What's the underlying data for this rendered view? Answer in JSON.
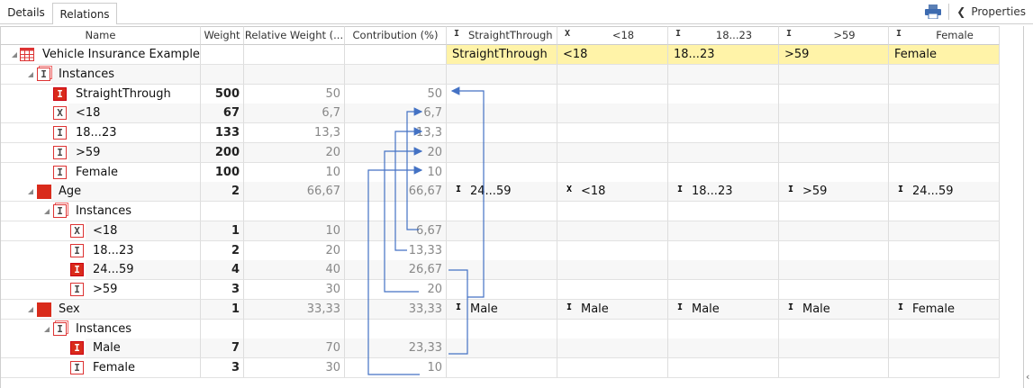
{
  "tabs": [
    {
      "label": "Details",
      "active": true
    },
    {
      "label": "Relations",
      "active": false
    }
  ],
  "toolbar": {
    "print_icon": "printer-icon",
    "properties_label": "Properties",
    "chevron_icon": "chevron-left-icon"
  },
  "columns": {
    "name": "Name",
    "weight": "Weight",
    "relative_weight": "Relative Weight (...",
    "contribution": "Contribution (%)",
    "instances": [
      {
        "icon": "instance-selected",
        "label": "StraightThrough"
      },
      {
        "icon": "instance-excluded",
        "label": "<18"
      },
      {
        "icon": "instance",
        "label": "18...23"
      },
      {
        "icon": "instance",
        "label": ">59"
      },
      {
        "icon": "instance",
        "label": "Female"
      }
    ]
  },
  "rows": [
    {
      "name": "Vehicle Insurance Example",
      "level": 0,
      "icon": "table",
      "expander": true,
      "weight": "",
      "rel": "",
      "contrib": "",
      "cells": [
        {
          "text": "StraightThrough"
        },
        {
          "text": "<18"
        },
        {
          "text": "18...23"
        },
        {
          "text": ">59"
        },
        {
          "text": "Female"
        }
      ],
      "highlight": true
    },
    {
      "name": "Instances",
      "level": 1,
      "icon": "instances",
      "expander": true,
      "weight": "",
      "rel": "",
      "contrib": ""
    },
    {
      "name": "StraightThrough",
      "level": 2,
      "icon": "instance-selected",
      "weight": "500",
      "rel": "50",
      "contrib": "50"
    },
    {
      "name": "<18",
      "level": 2,
      "icon": "instance-excluded",
      "weight": "67",
      "rel": "6,7",
      "contrib": "6,7"
    },
    {
      "name": "18...23",
      "level": 2,
      "icon": "instance",
      "weight": "133",
      "rel": "13,3",
      "contrib": "13,3"
    },
    {
      "name": ">59",
      "level": 2,
      "icon": "instance",
      "weight": "200",
      "rel": "20",
      "contrib": "20"
    },
    {
      "name": "Female",
      "level": 2,
      "icon": "instance",
      "weight": "100",
      "rel": "10",
      "contrib": "10"
    },
    {
      "name": "Age",
      "level": 1,
      "icon": "attribute",
      "expander": true,
      "weight": "2",
      "rel": "66,67",
      "contrib": "66,67",
      "cells": [
        {
          "icon": "instance-selected",
          "text": "24...59"
        },
        {
          "icon": "instance-excluded",
          "text": "<18"
        },
        {
          "icon": "instance",
          "text": "18...23"
        },
        {
          "icon": "instance",
          "text": ">59"
        },
        {
          "icon": "instance-selected",
          "text": "24...59"
        }
      ]
    },
    {
      "name": "Instances",
      "level": 2,
      "icon": "instances",
      "expander": true,
      "weight": "",
      "rel": "",
      "contrib": ""
    },
    {
      "name": "<18",
      "level": 3,
      "icon": "instance-excluded",
      "weight": "1",
      "rel": "10",
      "contrib": "6,67"
    },
    {
      "name": "18...23",
      "level": 3,
      "icon": "instance",
      "weight": "2",
      "rel": "20",
      "contrib": "13,33"
    },
    {
      "name": "24...59",
      "level": 3,
      "icon": "instance-selected",
      "weight": "4",
      "rel": "40",
      "contrib": "26,67"
    },
    {
      "name": ">59",
      "level": 3,
      "icon": "instance",
      "weight": "3",
      "rel": "30",
      "contrib": "20"
    },
    {
      "name": "Sex",
      "level": 1,
      "icon": "attribute",
      "expander": true,
      "weight": "1",
      "rel": "33,33",
      "contrib": "33,33",
      "cells": [
        {
          "icon": "instance-selected",
          "text": "Male"
        },
        {
          "icon": "instance-selected",
          "text": "Male"
        },
        {
          "icon": "instance-selected",
          "text": "Male"
        },
        {
          "icon": "instance-selected",
          "text": "Male"
        },
        {
          "icon": "instance",
          "text": "Female"
        }
      ]
    },
    {
      "name": "Instances",
      "level": 2,
      "icon": "instances",
      "expander": true,
      "weight": "",
      "rel": "",
      "contrib": ""
    },
    {
      "name": "Male",
      "level": 3,
      "icon": "instance-selected",
      "weight": "7",
      "rel": "70",
      "contrib": "23,33"
    },
    {
      "name": "Female",
      "level": 3,
      "icon": "instance",
      "weight": "3",
      "rel": "30",
      "contrib": "10"
    }
  ],
  "colors": {
    "accent_red": "#d92b1b",
    "highlight_yellow": "#fff3a8",
    "arrow_blue": "#4472c4"
  }
}
